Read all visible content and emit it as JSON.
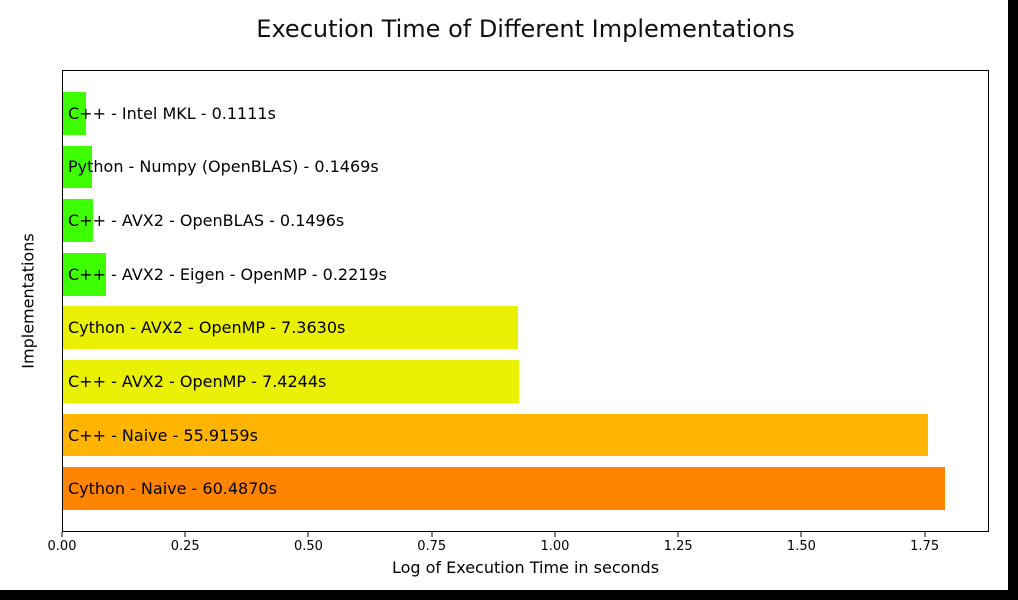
{
  "figure": {
    "title": "Execution Time of Different Implementations",
    "xlabel": "Log of Execution Time in seconds",
    "ylabel": "Implementations"
  },
  "chart_data": {
    "type": "bar",
    "orientation": "horizontal",
    "title": "Execution Time of Different Implementations",
    "xlabel": "Log of Execution Time in seconds",
    "ylabel": "Implementations",
    "value_transform": "log10(1 + seconds)",
    "xlim": [
      0,
      1.8765
    ],
    "grid": false,
    "legend": "none",
    "xticks": [
      {
        "value": 0.0,
        "label": "0.00"
      },
      {
        "value": 0.25,
        "label": "0.25"
      },
      {
        "value": 0.5,
        "label": "0.50"
      },
      {
        "value": 0.75,
        "label": "0.75"
      },
      {
        "value": 1.0,
        "label": "1.00"
      },
      {
        "value": 1.25,
        "label": "1.25"
      },
      {
        "value": 1.5,
        "label": "1.50"
      },
      {
        "value": 1.75,
        "label": "1.75"
      }
    ],
    "bars": [
      {
        "label": "C++ - Intel MKL - 0.1111s",
        "time_seconds": 0.1111,
        "log_value": 0.0458,
        "color": "#3dff00"
      },
      {
        "label": "Python - Numpy (OpenBLAS) - 0.1469s",
        "time_seconds": 0.1469,
        "log_value": 0.0595,
        "color": "#3dff00"
      },
      {
        "label": "C++ - AVX2 - OpenBLAS - 0.1496s",
        "time_seconds": 0.1496,
        "log_value": 0.0606,
        "color": "#3dff00"
      },
      {
        "label": "C++ - AVX2 - Eigen - OpenMP - 0.2219s",
        "time_seconds": 0.2219,
        "log_value": 0.087,
        "color": "#3dff00"
      },
      {
        "label": "Cython - AVX2 - OpenMP - 7.3630s",
        "time_seconds": 7.363,
        "log_value": 0.9224,
        "color": "#e9f000"
      },
      {
        "label": "C++ - AVX2 - OpenMP - 7.4244s",
        "time_seconds": 7.4244,
        "log_value": 0.9255,
        "color": "#e9f000"
      },
      {
        "label": "C++ - Naive - 55.9159s",
        "time_seconds": 55.9159,
        "log_value": 1.7552,
        "color": "#ffb400"
      },
      {
        "label": "Cython - Naive - 60.4870s",
        "time_seconds": 60.487,
        "log_value": 1.7888,
        "color": "#ff8400"
      }
    ]
  }
}
